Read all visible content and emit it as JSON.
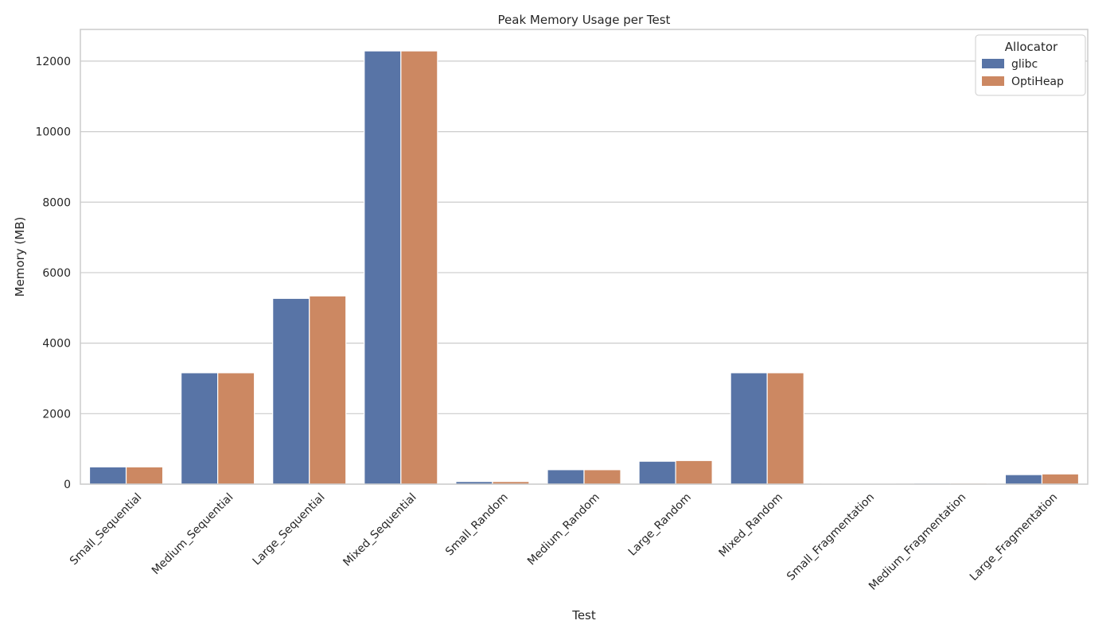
{
  "chart_data": {
    "type": "bar",
    "title": "Peak Memory Usage per Test",
    "xlabel": "Test",
    "ylabel": "Memory (MB)",
    "categories": [
      "Small_Sequential",
      "Medium_Sequential",
      "Large_Sequential",
      "Mixed_Sequential",
      "Small_Random",
      "Medium_Random",
      "Large_Random",
      "Mixed_Random",
      "Small_Fragmentation",
      "Medium_Fragmentation",
      "Large_Fragmentation"
    ],
    "series": [
      {
        "name": "glibc",
        "color": "#5874a6",
        "values": [
          490,
          3160,
          5270,
          12290,
          75,
          410,
          650,
          3160,
          15,
          30,
          270
        ]
      },
      {
        "name": "OptiHeap",
        "color": "#cc8862",
        "values": [
          490,
          3160,
          5340,
          12290,
          75,
          410,
          670,
          3160,
          15,
          30,
          290
        ]
      }
    ],
    "yticks": [
      0,
      2000,
      4000,
      6000,
      8000,
      10000,
      12000
    ],
    "ylim": [
      0,
      12900
    ],
    "grid": true,
    "legend": {
      "title": "Allocator",
      "position": "top-right"
    }
  }
}
